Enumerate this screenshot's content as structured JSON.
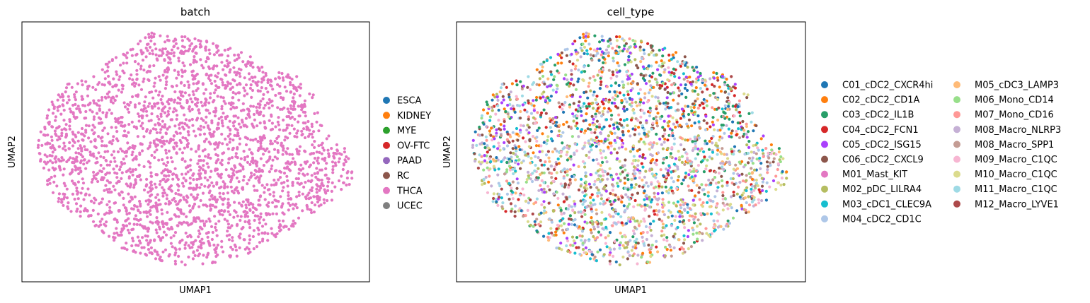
{
  "chart_data": [
    {
      "type": "scatter",
      "title": "batch",
      "xlabel": "UMAP1",
      "ylabel": "UMAP2",
      "grid": false,
      "ticks": false,
      "legend_position": "right",
      "legend_columns": 1,
      "series": [
        {
          "name": "ESCA",
          "color": "#1f77b4",
          "share": 0
        },
        {
          "name": "KIDNEY",
          "color": "#ff7f0e",
          "share": 0
        },
        {
          "name": "MYE",
          "color": "#2ca02c",
          "share": 0
        },
        {
          "name": "OV-FTC",
          "color": "#d62728",
          "share": 0
        },
        {
          "name": "PAAD",
          "color": "#9467bd",
          "share": 0
        },
        {
          "name": "RC",
          "color": "#8c564b",
          "share": 0
        },
        {
          "name": "THCA",
          "color": "#e377c2",
          "share": 1
        },
        {
          "name": "UCEC",
          "color": "#7f7f7f",
          "share": 0
        }
      ]
    },
    {
      "type": "scatter",
      "title": "cell_type",
      "xlabel": "UMAP1",
      "ylabel": "UMAP2",
      "grid": false,
      "ticks": false,
      "legend_position": "right",
      "legend_columns": 2,
      "series": [
        {
          "name": "C01_cDC2_CXCR4hi",
          "color": "#1f77b4"
        },
        {
          "name": "C02_cDC2_CD1A",
          "color": "#ff7f0e"
        },
        {
          "name": "C03_cDC2_IL1B",
          "color": "#279e68"
        },
        {
          "name": "C04_cDC2_FCN1",
          "color": "#d62728"
        },
        {
          "name": "C05_cDC2_ISG15",
          "color": "#aa40fc"
        },
        {
          "name": "C06_cDC2_CXCL9",
          "color": "#8c564b"
        },
        {
          "name": "M01_Mast_KIT",
          "color": "#e377c2"
        },
        {
          "name": "M02_pDC_LILRA4",
          "color": "#b5bd61"
        },
        {
          "name": "M03_cDC1_CLEC9A",
          "color": "#17becf"
        },
        {
          "name": "M04_cDC2_CD1C",
          "color": "#aec7e8"
        },
        {
          "name": "M05_cDC3_LAMP3",
          "color": "#ffbb78"
        },
        {
          "name": "M06_Mono_CD14",
          "color": "#98df8a"
        },
        {
          "name": "M07_Mono_CD16",
          "color": "#ff9896"
        },
        {
          "name": "M08_Macro_NLRP3",
          "color": "#c5b0d5"
        },
        {
          "name": "M08_Macro_SPP1",
          "color": "#c49c94"
        },
        {
          "name": "M09_Macro_C1QC",
          "color": "#f7b6d2"
        },
        {
          "name": "M10_Macro_C1QC",
          "color": "#dbdb8d"
        },
        {
          "name": "M11_Macro_C1QC",
          "color": "#9edae5"
        },
        {
          "name": "M12_Macro_LYVE1",
          "color": "#ad494a"
        }
      ]
    }
  ]
}
